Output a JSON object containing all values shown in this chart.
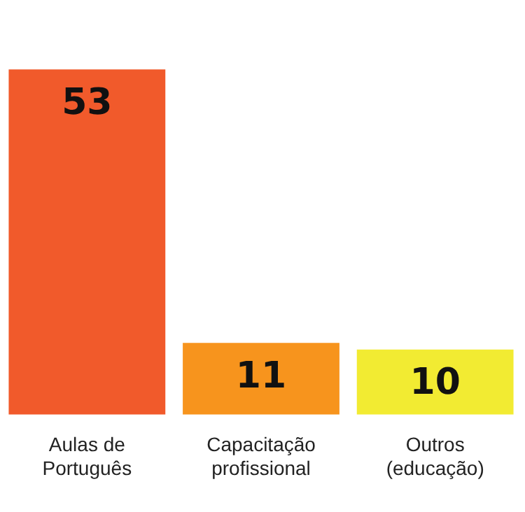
{
  "chart_data": {
    "type": "bar",
    "categories": [
      "Aulas de\nPortuguês",
      "Capacitação\nprofissional",
      "Outros\n(educação)"
    ],
    "values": [
      53,
      11,
      10
    ],
    "colors": [
      "#f15a2b",
      "#f7941d",
      "#f2eb32"
    ],
    "data_labels": true,
    "grid": false,
    "legend": false
  }
}
